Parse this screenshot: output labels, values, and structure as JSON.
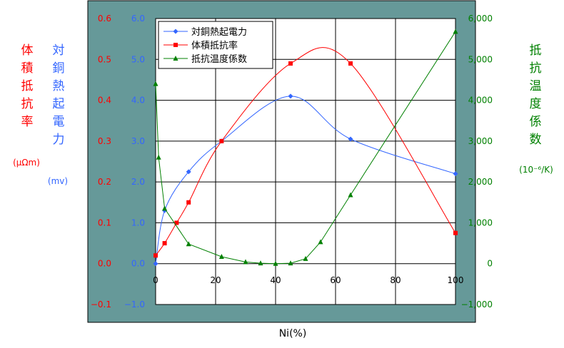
{
  "chart_data": {
    "type": "line",
    "xlabel": "Ni(%)",
    "x_range": [
      0,
      100
    ],
    "x_ticks": [
      0,
      20,
      40,
      60,
      80,
      100
    ],
    "axes": {
      "left_outer": {
        "label": "体積抵抗率",
        "unit": "(μΩm)",
        "range": [
          -0.1,
          0.6
        ],
        "ticks": [
          "−0.1",
          "0.0",
          "0.1",
          "0.2",
          "0.3",
          "0.4",
          "0.5",
          "0.6"
        ],
        "color": "#ff0000"
      },
      "left_inner": {
        "label": "対銅熱起電力",
        "unit": "(mv)",
        "range": [
          -1.0,
          6.0
        ],
        "ticks": [
          "−1.0",
          "0.0",
          "1.0",
          "2.0",
          "3.0",
          "4.0",
          "5.0",
          "6.0"
        ],
        "color": "#3366ff"
      },
      "right": {
        "label": "抵抗温度係数",
        "unit": "(10⁻⁶/K)",
        "range": [
          -1000,
          6000
        ],
        "ticks": [
          "−1,000",
          "0",
          "1,000",
          "2,000",
          "3,000",
          "4,000",
          "5,000",
          "6,000"
        ],
        "color": "#008000"
      }
    },
    "legend": {
      "placement": "top-left",
      "entries": [
        "対銅熱起電力",
        "体積抵抗率",
        "抵抗温度係数"
      ]
    },
    "grid": true,
    "series": [
      {
        "name": "対銅熱起電力",
        "axis": "left_inner",
        "color": "#3366ff",
        "marker": "diamond",
        "smooth": true,
        "points": [
          [
            0,
            0.0
          ],
          [
            3,
            1.3
          ],
          [
            11,
            2.25
          ],
          [
            22,
            3.0
          ],
          [
            45,
            4.1
          ],
          [
            65,
            3.05
          ],
          [
            100,
            2.2
          ]
        ]
      },
      {
        "name": "体積抵抗率",
        "axis": "left_outer",
        "color": "#ff0000",
        "marker": "square",
        "smooth": true,
        "points": [
          [
            0,
            0.02
          ],
          [
            3,
            0.05
          ],
          [
            7,
            0.1
          ],
          [
            11,
            0.15
          ],
          [
            22,
            0.3
          ],
          [
            45,
            0.49
          ],
          [
            65,
            0.49
          ],
          [
            100,
            0.075
          ]
        ]
      },
      {
        "name": "抵抗温度係数",
        "axis": "right",
        "color": "#008000",
        "marker": "triangle",
        "smooth": false,
        "points": [
          [
            0,
            4400
          ],
          [
            1,
            2600
          ],
          [
            3,
            1350
          ],
          [
            11,
            480
          ],
          [
            22,
            170
          ],
          [
            30,
            40
          ],
          [
            35,
            10
          ],
          [
            40,
            0
          ],
          [
            45,
            10
          ],
          [
            50,
            120
          ],
          [
            55,
            530
          ],
          [
            65,
            1680
          ],
          [
            100,
            5680
          ]
        ]
      }
    ]
  }
}
